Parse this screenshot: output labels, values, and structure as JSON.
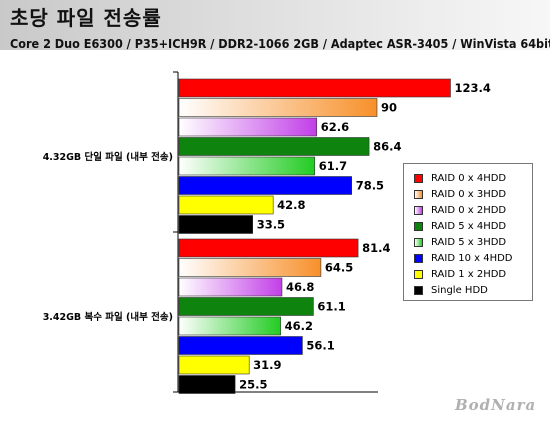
{
  "header": {
    "title": "초당 파일 전송률",
    "subtitle": "Core 2 Duo E6300 / P35+ICH9R / DDR2-1066 2GB / Adaptec ASR-3405 / WinVista 64bit"
  },
  "chart_data": {
    "type": "bar",
    "orientation": "horizontal",
    "categories": [
      "4.32GB 단일 파일 (내부 전송)",
      "3.42GB 복수 파일 (내부 전송)"
    ],
    "series": [
      {
        "name": "RAID 0 x 4HDD",
        "values": [
          123.4,
          81.4
        ],
        "color": "#ff0000"
      },
      {
        "name": "RAID 0 x 3HDD",
        "values": [
          90,
          64.5
        ],
        "color": "#f7902a"
      },
      {
        "name": "RAID 0 x 2HDD",
        "values": [
          62.6,
          46.8
        ],
        "color": "#c23fe8"
      },
      {
        "name": "RAID 5 x 4HDD",
        "values": [
          86.4,
          61.1
        ],
        "color": "#0e840e"
      },
      {
        "name": "RAID 5 x 3HDD",
        "values": [
          61.7,
          46.2
        ],
        "color": "#22cc22"
      },
      {
        "name": "RAID 10 x 4HDD",
        "values": [
          78.5,
          56.1
        ],
        "color": "#0000ff"
      },
      {
        "name": "RAID 1 x 2HDD",
        "values": [
          42.8,
          31.9
        ],
        "color": "#ffff00"
      },
      {
        "name": "Single HDD",
        "values": [
          33.5,
          25.5
        ],
        "color": "#000000"
      }
    ],
    "gradient_series": [
      "RAID 0 x 3HDD",
      "RAID 0 x 2HDD",
      "RAID 5 x 3HDD"
    ],
    "xlim": [
      0,
      130
    ],
    "grid": false,
    "legend_position": "right"
  },
  "logo": "BodNara"
}
